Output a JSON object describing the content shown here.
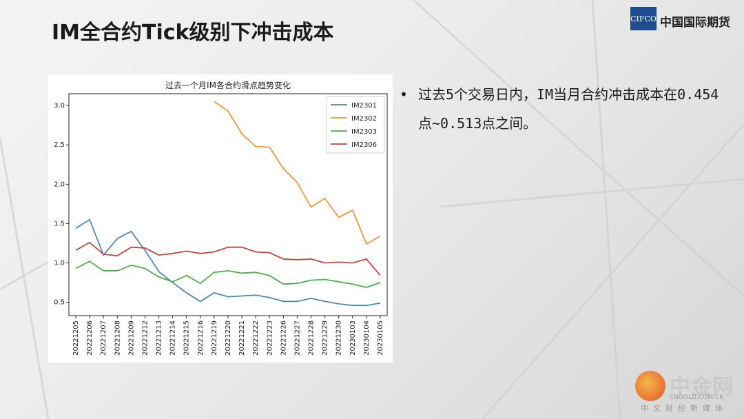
{
  "slide": {
    "title": "IM全合约Tick级别下冲击成本",
    "logo_box": "CIFCO",
    "logo_text": "中国国际期货",
    "bullet": "过去5个交易日内，IM当月合约冲击成本在0.454点~0.513点之间。",
    "watermark_name": "中金网",
    "watermark_url": "CNGOLD.COM.CN",
    "watermark_sub": "中文财经新媒体"
  },
  "chart_data": {
    "type": "line",
    "title": "过去一个月IM各合约滑点趋势变化",
    "categories": [
      "20221205",
      "20221206",
      "20221207",
      "20221208",
      "20221209",
      "20221212",
      "20221213",
      "20221214",
      "20221215",
      "20221216",
      "20221219",
      "20221220",
      "20221221",
      "20221222",
      "20221223",
      "20221226",
      "20221227",
      "20221228",
      "20221229",
      "20221230",
      "20230103",
      "20230104",
      "20230105"
    ],
    "yticks": [
      "0.5",
      "1.0",
      "1.5",
      "2.0",
      "2.5",
      "3.0"
    ],
    "ylim": [
      0.33,
      3.15
    ],
    "grid": false,
    "legend": "top-right",
    "series": [
      {
        "name": "IM2301",
        "color": "#4e87bd",
        "values": [
          1.44,
          1.55,
          1.1,
          1.31,
          1.4,
          1.16,
          0.89,
          0.75,
          0.62,
          0.51,
          0.62,
          0.57,
          0.58,
          0.59,
          0.56,
          0.51,
          0.51,
          0.55,
          0.51,
          0.48,
          0.46,
          0.46,
          0.49
        ]
      },
      {
        "name": "IM2302",
        "color": "#f0973c",
        "values": [
          null,
          null,
          null,
          null,
          null,
          null,
          null,
          null,
          null,
          null,
          3.05,
          2.93,
          2.64,
          2.48,
          2.47,
          2.2,
          2.02,
          1.71,
          1.82,
          1.58,
          1.67,
          1.24,
          1.34
        ]
      },
      {
        "name": "IM2303",
        "color": "#4fae4c",
        "values": [
          0.93,
          1.02,
          0.9,
          0.9,
          0.97,
          0.93,
          0.82,
          0.76,
          0.84,
          0.74,
          0.88,
          0.9,
          0.87,
          0.88,
          0.84,
          0.73,
          0.74,
          0.78,
          0.79,
          0.76,
          0.73,
          0.69,
          0.75
        ]
      },
      {
        "name": "IM2306",
        "color": "#c9443c",
        "values": [
          1.16,
          1.26,
          1.11,
          1.09,
          1.2,
          1.19,
          1.1,
          1.12,
          1.15,
          1.12,
          1.14,
          1.2,
          1.2,
          1.14,
          1.13,
          1.05,
          1.04,
          1.05,
          1.0,
          1.01,
          1.0,
          1.05,
          0.84
        ]
      }
    ]
  }
}
